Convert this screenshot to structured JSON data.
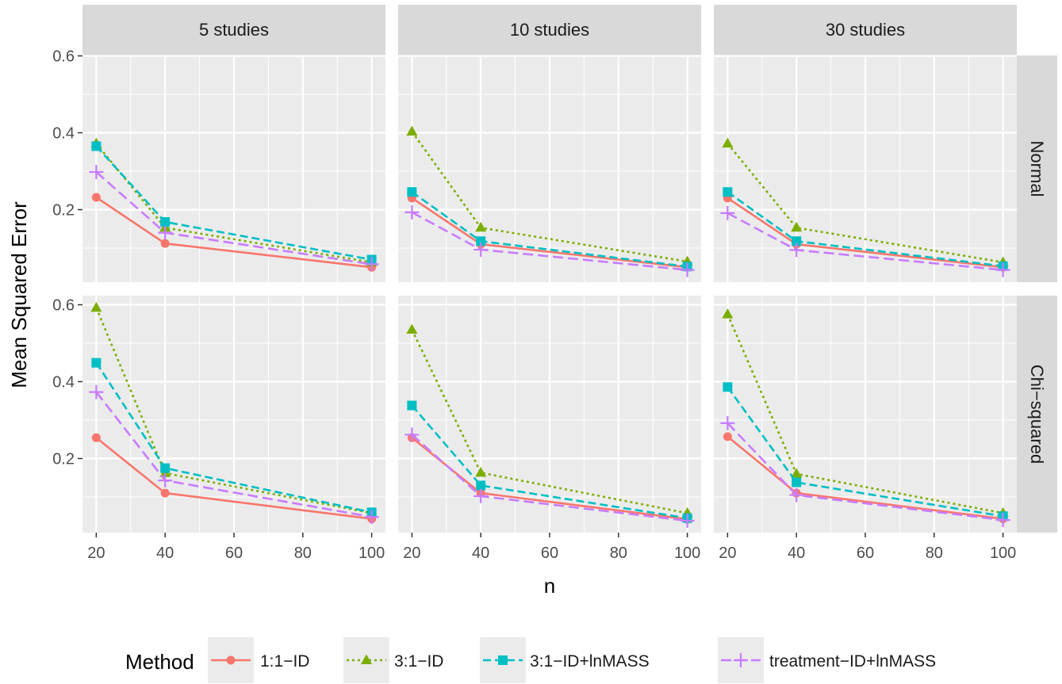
{
  "chart_data": {
    "type": "line",
    "layout": "facet_grid",
    "ylabel": "Mean Squared Error",
    "xlabel": "n",
    "x": [
      20,
      40,
      100
    ],
    "xlim": [
      16,
      104
    ],
    "ylim": [
      0.012,
      0.628
    ],
    "xticks": [
      20,
      40,
      60,
      80,
      100
    ],
    "yticks": [
      0.2,
      0.4,
      0.6
    ],
    "grid": true,
    "legend": {
      "title": "Method",
      "position": "bottom",
      "entries": [
        "1:1−ID",
        "3:1−ID",
        "3:1−ID+lnMASS",
        "treatment−ID+lnMASS"
      ]
    },
    "column_facets": [
      "5 studies",
      "10 studies",
      "30 studies"
    ],
    "row_facets": [
      "Normal",
      "Chi−squared"
    ],
    "series_style": [
      {
        "color": "#F8766D",
        "dash": "",
        "marker": "circle"
      },
      {
        "color": "#7CAE00",
        "dash": "3,4",
        "marker": "triangle"
      },
      {
        "color": "#00BFC4",
        "dash": "10,5",
        "marker": "square"
      },
      {
        "color": "#C77CFF",
        "dash": "13,6",
        "marker": "plus"
      }
    ],
    "panels": [
      {
        "row": "Normal",
        "col": "5 studies",
        "series": [
          {
            "name": "1:1−ID",
            "values": [
              0.232,
              0.112,
              0.05
            ]
          },
          {
            "name": "3:1−ID",
            "values": [
              0.372,
              0.153,
              0.063
            ]
          },
          {
            "name": "3:1−ID+lnMASS",
            "values": [
              0.365,
              0.168,
              0.07
            ]
          },
          {
            "name": "treatment−ID+lnMASS",
            "values": [
              0.298,
              0.14,
              0.058
            ]
          }
        ]
      },
      {
        "row": "Normal",
        "col": "10 studies",
        "series": [
          {
            "name": "1:1−ID",
            "values": [
              0.23,
              0.11,
              0.05
            ]
          },
          {
            "name": "3:1−ID",
            "values": [
              0.403,
              0.153,
              0.065
            ]
          },
          {
            "name": "3:1−ID+lnMASS",
            "values": [
              0.246,
              0.118,
              0.052
            ]
          },
          {
            "name": "treatment−ID+lnMASS",
            "values": [
              0.193,
              0.096,
              0.043
            ]
          }
        ]
      },
      {
        "row": "Normal",
        "col": "30 studies",
        "series": [
          {
            "name": "1:1−ID",
            "values": [
              0.23,
              0.11,
              0.05
            ]
          },
          {
            "name": "3:1−ID",
            "values": [
              0.372,
              0.153,
              0.063
            ]
          },
          {
            "name": "3:1−ID+lnMASS",
            "values": [
              0.246,
              0.118,
              0.053
            ]
          },
          {
            "name": "treatment−ID+lnMASS",
            "values": [
              0.191,
              0.095,
              0.043
            ]
          }
        ]
      },
      {
        "row": "Chi−squared",
        "col": "5 studies",
        "series": [
          {
            "name": "1:1−ID",
            "values": [
              0.254,
              0.11,
              0.043
            ]
          },
          {
            "name": "3:1−ID",
            "values": [
              0.592,
              0.162,
              0.058
            ]
          },
          {
            "name": "3:1−ID+lnMASS",
            "values": [
              0.449,
              0.175,
              0.06
            ]
          },
          {
            "name": "treatment−ID+lnMASS",
            "values": [
              0.373,
              0.143,
              0.048
            ]
          }
        ]
      },
      {
        "row": "Chi−squared",
        "col": "10 studies",
        "series": [
          {
            "name": "1:1−ID",
            "values": [
              0.254,
              0.11,
              0.042
            ]
          },
          {
            "name": "3:1−ID",
            "values": [
              0.535,
              0.163,
              0.058
            ]
          },
          {
            "name": "3:1−ID+lnMASS",
            "values": [
              0.338,
              0.13,
              0.045
            ]
          },
          {
            "name": "treatment−ID+lnMASS",
            "values": [
              0.262,
              0.102,
              0.038
            ]
          }
        ]
      },
      {
        "row": "Chi−squared",
        "col": "30 studies",
        "series": [
          {
            "name": "1:1−ID",
            "values": [
              0.257,
              0.11,
              0.043
            ]
          },
          {
            "name": "3:1−ID",
            "values": [
              0.575,
              0.16,
              0.058
            ]
          },
          {
            "name": "3:1−ID+lnMASS",
            "values": [
              0.386,
              0.138,
              0.05
            ]
          },
          {
            "name": "treatment−ID+lnMASS",
            "values": [
              0.292,
              0.105,
              0.04
            ]
          }
        ]
      }
    ]
  }
}
